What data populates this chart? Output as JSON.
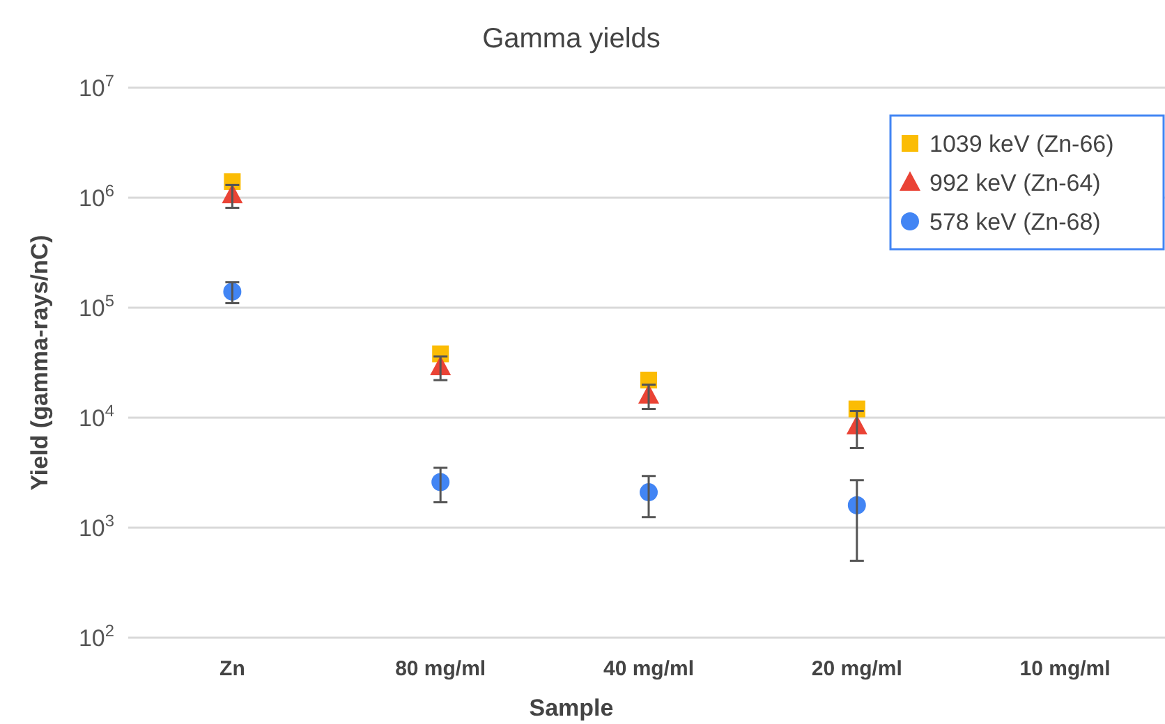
{
  "chart_data": {
    "type": "scatter",
    "title": "Gamma yields",
    "xlabel": "Sample",
    "ylabel": "Yield (gamma-rays/nC)",
    "categories": [
      "Zn",
      "80 mg/ml",
      "40 mg/ml",
      "20 mg/ml",
      "10 mg/ml"
    ],
    "log": true,
    "ylim": [
      100,
      10000000
    ],
    "yticks": [
      {
        "value": 100,
        "label": "10$^{2}$"
      },
      {
        "value": 1000,
        "label": "10$^{3}$"
      },
      {
        "value": 10000,
        "label": "10$^{4}$"
      },
      {
        "value": 100000,
        "label": "10$^{5}$"
      },
      {
        "value": 1000000,
        "label": "10$^{6}$"
      },
      {
        "value": 10000000,
        "label": "10$^{7}$"
      }
    ],
    "grid": "y",
    "legend": "top right",
    "series": [
      {
        "name": "1039 keV (Zn-66)",
        "color": "#fbbc04",
        "marker": "square",
        "values": [
          1400000,
          38000,
          22000,
          12000,
          null
        ]
      },
      {
        "name": "992 keV (Zn-64)",
        "color": "#ea4335",
        "marker": "triangle",
        "values": [
          1060000,
          29000,
          16000,
          8400,
          null
        ],
        "errors": [
          250000,
          7000,
          4000,
          3100,
          null
        ]
      },
      {
        "name": "578 keV (Zn-68)",
        "color": "#4285f4",
        "marker": "circle",
        "values": [
          140000,
          2600,
          2100,
          1600,
          null
        ],
        "errors": [
          30000,
          900,
          850,
          1100,
          null
        ]
      }
    ]
  }
}
